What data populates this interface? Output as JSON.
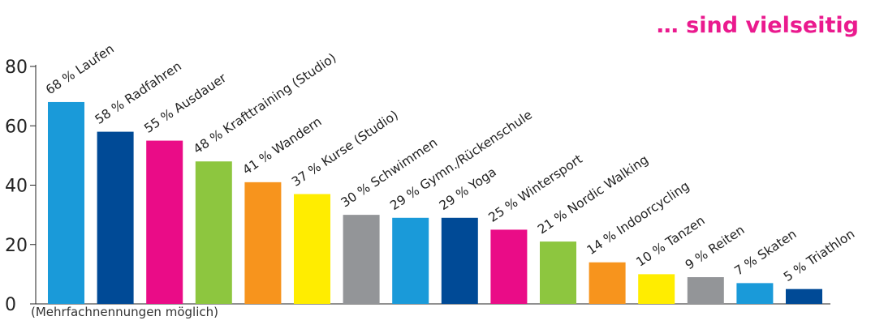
{
  "chart_data": {
    "type": "bar",
    "title": "… sind vielseitig",
    "footnote": "(Mehrfachnennungen möglich)",
    "ylim": [
      0,
      80
    ],
    "yticks": [
      0,
      20,
      40,
      60,
      80
    ],
    "grid": false,
    "categories": [
      "Laufen",
      "Radfahren",
      "Ausdauer",
      "Krafttraining (Studio)",
      "Wandern",
      "Kurse (Studio)",
      "Schwimmen",
      "Gymn./Rückenschule",
      "Yoga",
      "Wintersport",
      "Nordic Walking",
      "Indoorcycling",
      "Tanzen",
      "Reiten",
      "Skaten",
      "Triathlon"
    ],
    "values": [
      68,
      58,
      55,
      48,
      41,
      37,
      30,
      29,
      29,
      25,
      21,
      14,
      10,
      9,
      7,
      5
    ],
    "labels": [
      "68 % Laufen",
      "58 % Radfahren",
      "55 % Ausdauer",
      "48 % Krafttraining (Studio)",
      "41 % Wandern",
      "37 % Kurse (Studio)",
      "30 % Schwimmen",
      "29 % Gymn./Rückenschule",
      "29 % Yoga",
      "25 % Wintersport",
      "21 % Nordic Walking",
      "14 % Indoorcycling",
      "10 % Tanzen",
      "9 % Reiten",
      "7 % Skaten",
      "5 % Triathlon"
    ],
    "colors": [
      "#1a9ad9",
      "#004a96",
      "#ea0c87",
      "#8dc63f",
      "#f7941d",
      "#ffed00",
      "#939598",
      "#1a9ad9",
      "#004a96",
      "#ea0c87",
      "#8dc63f",
      "#f7941d",
      "#ffed00",
      "#939598",
      "#1a9ad9",
      "#004a96"
    ]
  }
}
